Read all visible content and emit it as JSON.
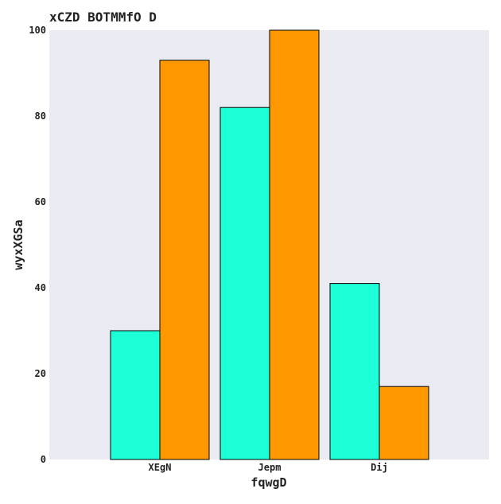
{
  "chart_data": {
    "type": "bar",
    "title": "xCZD BOTMMfO D",
    "xlabel": "fqwgD",
    "ylabel": "wyxXGSa",
    "categories": [
      "XEgN",
      "Jepm",
      "Dij"
    ],
    "series": [
      {
        "values": [
          30,
          82,
          41
        ],
        "color": "#1dffd6"
      },
      {
        "values": [
          93,
          100,
          17
        ],
        "color": "#ff9700"
      }
    ],
    "ylim": [
      0,
      100
    ],
    "yticks": [
      "0",
      "20",
      "40",
      "60",
      "80",
      "100"
    ],
    "grid": false,
    "legend": "none",
    "plot_background": "#eaeaf2",
    "bar_edge_color": "#000000"
  }
}
